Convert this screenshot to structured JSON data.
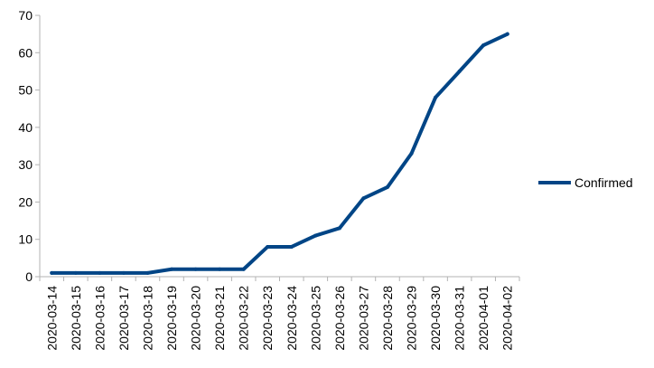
{
  "chart_data": {
    "type": "line",
    "x": [
      "2020-03-14",
      "2020-03-15",
      "2020-03-16",
      "2020-03-17",
      "2020-03-18",
      "2020-03-19",
      "2020-03-20",
      "2020-03-21",
      "2020-03-22",
      "2020-03-23",
      "2020-03-24",
      "2020-03-25",
      "2020-03-26",
      "2020-03-27",
      "2020-03-28",
      "2020-03-29",
      "2020-03-30",
      "2020-03-31",
      "2020-04-01",
      "2020-04-02"
    ],
    "series": [
      {
        "name": "Confirmed",
        "color": "#004586",
        "values": [
          1,
          1,
          1,
          1,
          1,
          2,
          2,
          2,
          2,
          8,
          8,
          11,
          13,
          21,
          24,
          33,
          48,
          55,
          62,
          65
        ]
      }
    ],
    "y_ticks": [
      "0",
      "10",
      "20",
      "30",
      "40",
      "50",
      "60",
      "70"
    ],
    "ylim": [
      0,
      70
    ],
    "title": "",
    "xlabel": "",
    "ylabel": "",
    "grid": false,
    "legend_position": "right"
  }
}
